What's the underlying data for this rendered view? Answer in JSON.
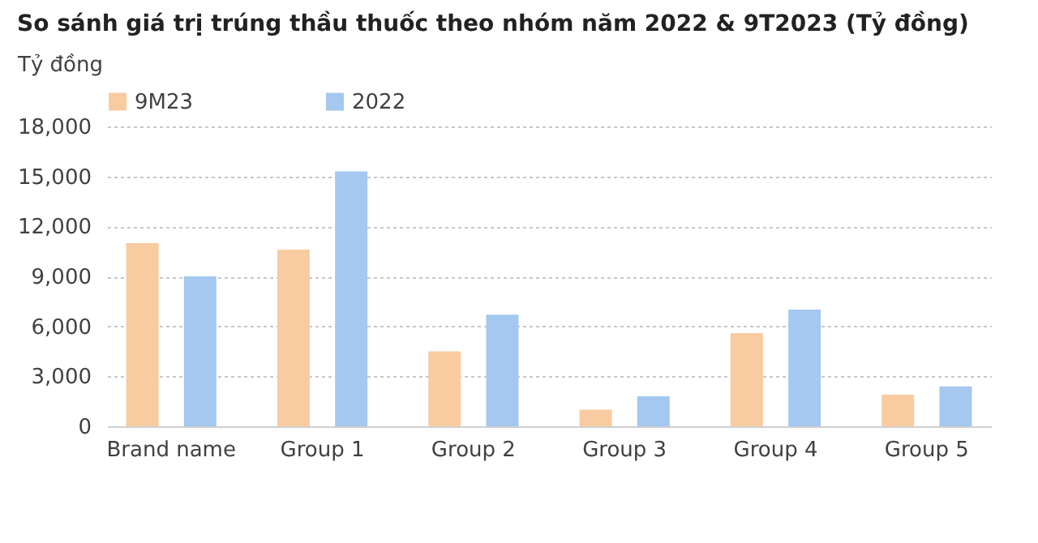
{
  "chart_data": {
    "type": "bar",
    "title": "So sánh giá trị trúng thầu thuốc theo nhóm năm 2022 & 9T2023 (Tỷ đồng)",
    "ylabel": "Tỷ đồng",
    "categories": [
      "Brand name",
      "Group 1",
      "Group 2",
      "Group 3",
      "Group 4",
      "Group 5"
    ],
    "series": [
      {
        "name": "9M23",
        "color": "#f8cba1",
        "values": [
          11000,
          10600,
          4500,
          1000,
          5600,
          1900
        ]
      },
      {
        "name": "2022",
        "color": "#a4c8ef",
        "values": [
          9000,
          15300,
          6700,
          1800,
          7000,
          2400
        ]
      }
    ],
    "ylim": [
      0,
      18000
    ],
    "yticks": [
      0,
      {
        "value": 3000,
        "label": "3,000"
      },
      {
        "value": 6000,
        "label": "6,000"
      },
      {
        "value": 9000,
        "label": "9,000"
      },
      {
        "value": 12000,
        "label": "12,000"
      },
      {
        "value": 15000,
        "label": "15,000"
      },
      {
        "value": 18000,
        "label": "18,000"
      }
    ],
    "grid": "y",
    "legend": "top"
  }
}
